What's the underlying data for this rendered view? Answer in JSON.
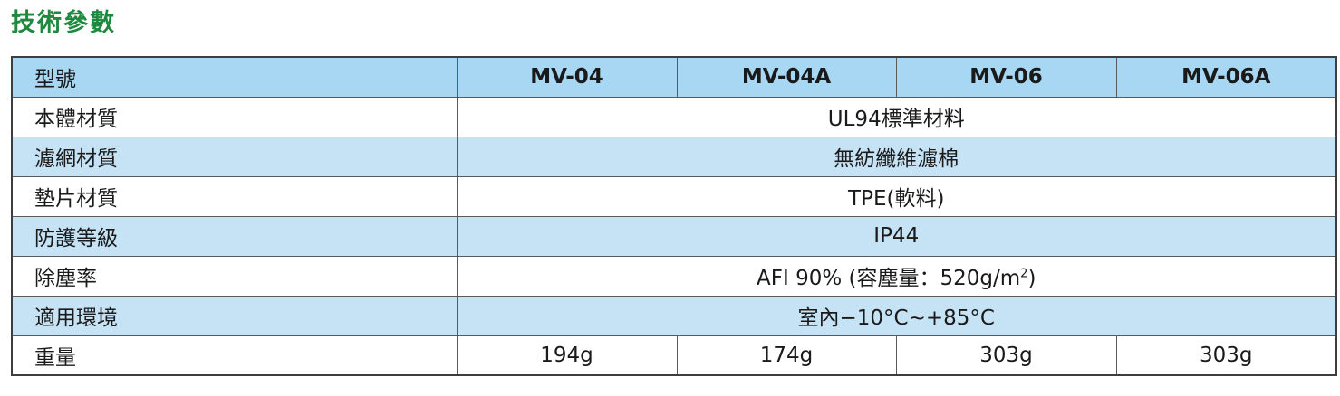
{
  "title": "技術參數",
  "header": {
    "label": "型號",
    "models": [
      "MV-04",
      "MV-04A",
      "MV-06",
      "MV-06A"
    ]
  },
  "rows": [
    {
      "label": "本體材質",
      "value": "UL94標準材料"
    },
    {
      "label": "濾網材質",
      "value": "無紡纖維濾棉"
    },
    {
      "label": "墊片材質",
      "value": "TPE(軟料)"
    },
    {
      "label": "防護等級",
      "value": "IP44"
    },
    {
      "label": "除塵率",
      "value_prefix": "AFI 90% (容塵量：520g/m",
      "value_sup": "2",
      "value_suffix": ")"
    },
    {
      "label": "適用環境",
      "value": "室內−10°C~+85°C"
    }
  ],
  "weight": {
    "label": "重量",
    "values": [
      "194g",
      "174g",
      "303g",
      "303g"
    ]
  }
}
